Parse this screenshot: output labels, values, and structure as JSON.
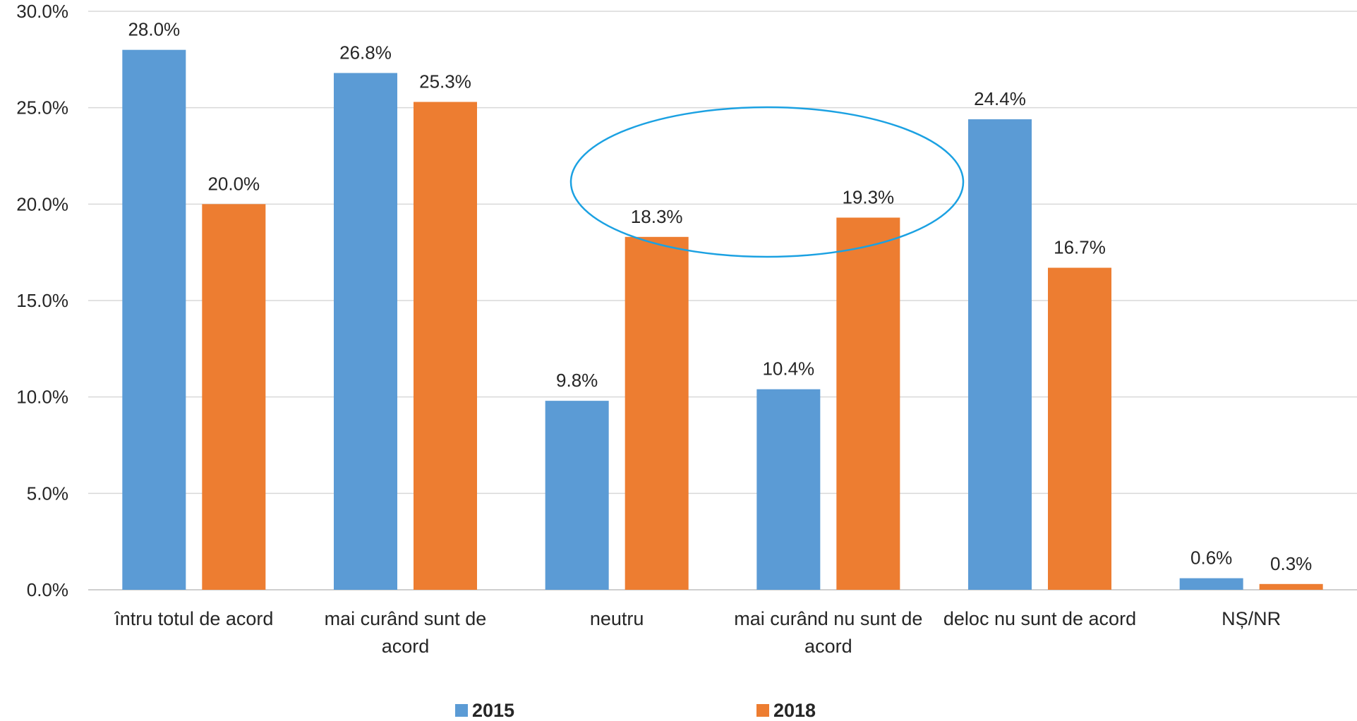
{
  "chart_data": {
    "type": "bar",
    "title": "",
    "xlabel": "",
    "ylabel": "",
    "ylim": [
      0,
      30
    ],
    "y_tick_values": [
      0,
      5,
      10,
      15,
      20,
      25,
      30
    ],
    "y_tick_labels": [
      "0.0%",
      "5.0%",
      "10.0%",
      "15.0%",
      "20.0%",
      "25.0%",
      "30.0%"
    ],
    "grid": true,
    "legend_position": "bottom",
    "categories": [
      "întru totul de acord",
      "mai curând sunt de acord",
      "neutru",
      "mai curând nu sunt de acord",
      "deloc nu sunt de acord",
      "NȘ/NR"
    ],
    "series": [
      {
        "name": "2015",
        "color": "#5b9bd5",
        "values": [
          28.0,
          26.8,
          9.8,
          10.4,
          24.4,
          0.6
        ],
        "labels": [
          "28.0%",
          "26.8%",
          "9.8%",
          "10.4%",
          "24.4%",
          "0.6%"
        ]
      },
      {
        "name": "2018",
        "color": "#ed7d31",
        "values": [
          20.0,
          25.3,
          18.3,
          19.3,
          16.7,
          0.3
        ],
        "labels": [
          "20.0%",
          "25.3%",
          "18.3%",
          "19.3%",
          "16.7%",
          "0.3%"
        ]
      }
    ],
    "annotation": {
      "shape": "ellipse",
      "color": "#1ba1e2",
      "highlights": [
        "neutru",
        "mai curând nu sunt de acord"
      ],
      "series": "2018"
    }
  }
}
